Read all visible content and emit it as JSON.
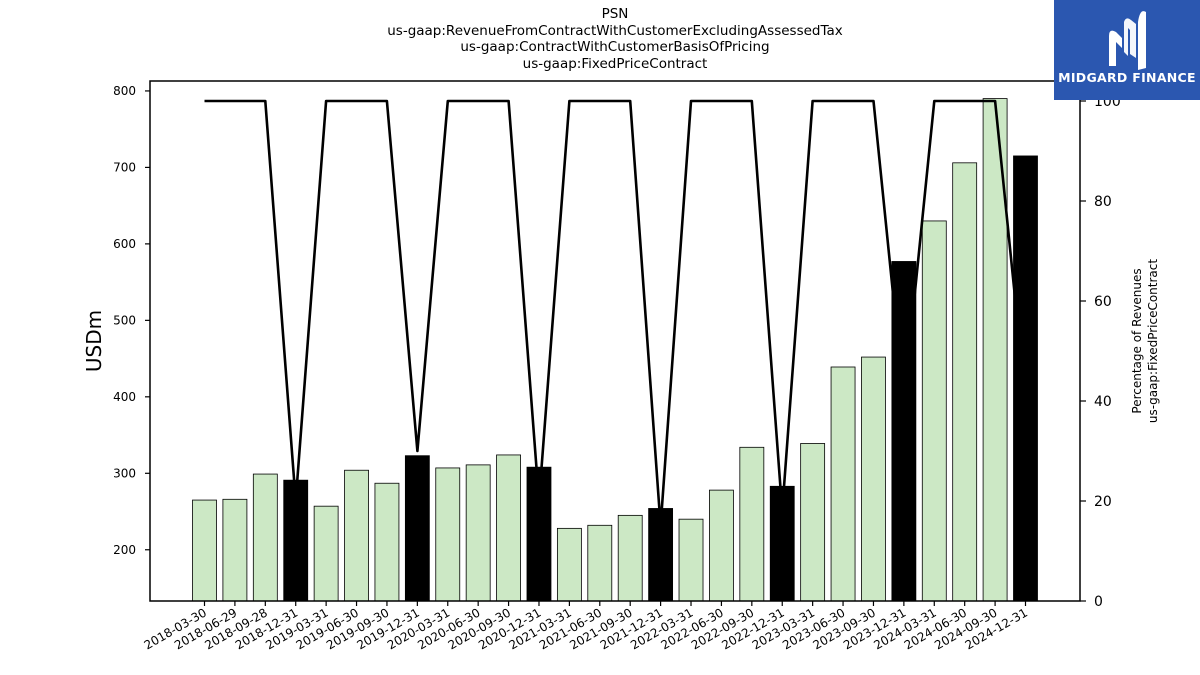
{
  "header": {
    "title_lines": [
      "PSN",
      "us-gaap:RevenueFromContractWithCustomerExcludingAssessedTax",
      "us-gaap:ContractWithCustomerBasisOfPricing",
      "us-gaap:FixedPriceContract"
    ]
  },
  "logo": {
    "text": "MIDGARD FINANCE",
    "background": "#2b57b0"
  },
  "chart_data": {
    "type": "bar",
    "ylabel": "USDm",
    "y2label_lines": [
      "Percentage of Revenues",
      "us-gaap:FixedPriceContract"
    ],
    "ylim": [
      133,
      813
    ],
    "y2lim": [
      0,
      104
    ],
    "yticks": [
      200,
      300,
      400,
      500,
      600,
      700,
      800
    ],
    "y2ticks": [
      0,
      20,
      40,
      60,
      80,
      100
    ],
    "grid": false,
    "colors": {
      "quarter_bar": "#cce8c5",
      "annual_bar": "#000000",
      "line": "#000000"
    },
    "categories": [
      "2018-03-30",
      "2018-06-29",
      "2018-09-28",
      "2018-12-31",
      "2019-03-31",
      "2019-06-30",
      "2019-09-30",
      "2019-12-31",
      "2020-03-31",
      "2020-06-30",
      "2020-09-30",
      "2020-12-31",
      "2021-03-31",
      "2021-06-30",
      "2021-09-30",
      "2021-12-31",
      "2022-03-31",
      "2022-06-30",
      "2022-09-30",
      "2022-12-31",
      "2023-03-31",
      "2023-06-30",
      "2023-09-30",
      "2023-12-31",
      "2024-03-31",
      "2024-06-30",
      "2024-09-30",
      "2024-12-31"
    ],
    "series": [
      {
        "kind": "bar",
        "values": [
          265,
          266,
          299,
          291,
          257,
          304,
          287,
          323,
          307,
          311,
          324,
          308,
          228,
          232,
          245,
          254,
          240,
          278,
          334,
          283,
          339,
          439,
          452,
          577,
          630,
          706,
          790,
          715
        ],
        "annual": [
          false,
          false,
          false,
          true,
          false,
          false,
          false,
          true,
          false,
          false,
          false,
          true,
          false,
          false,
          false,
          true,
          false,
          false,
          false,
          true,
          false,
          false,
          false,
          true,
          false,
          false,
          false,
          true
        ]
      },
      {
        "kind": "line",
        "axis": "right",
        "values": [
          100,
          100,
          100,
          20,
          100,
          100,
          100,
          30,
          100,
          100,
          100,
          20,
          100,
          100,
          100,
          15,
          100,
          100,
          100,
          18,
          100,
          100,
          100,
          40,
          100,
          100,
          100,
          40
        ]
      }
    ]
  }
}
